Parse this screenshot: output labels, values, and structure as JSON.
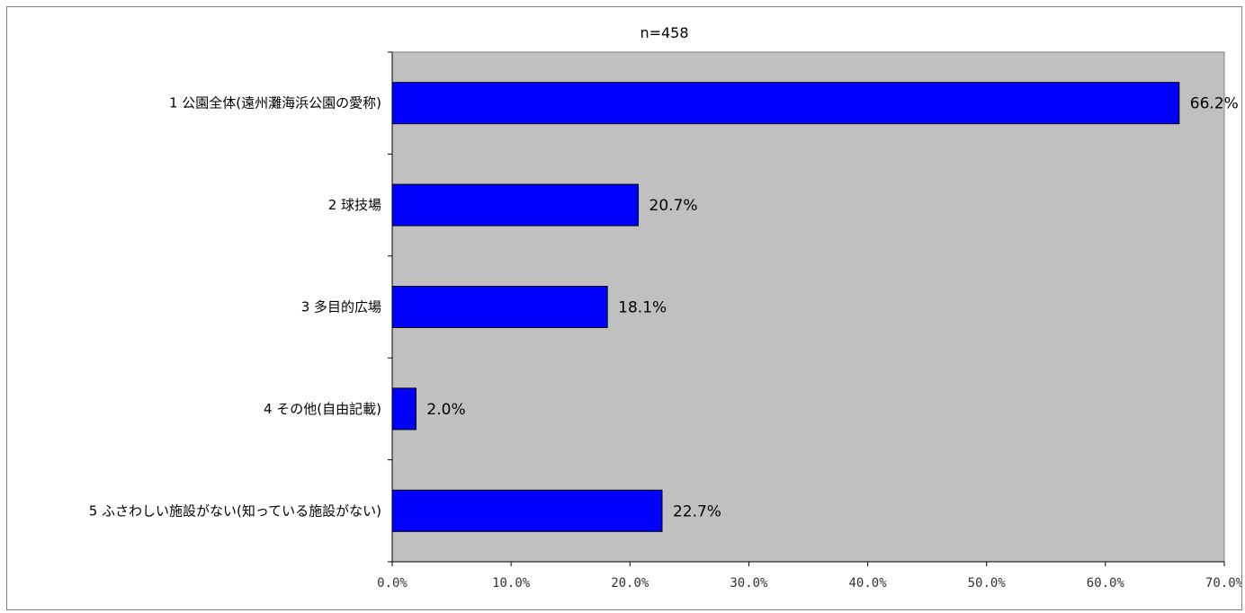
{
  "chart_data": {
    "type": "bar",
    "orientation": "horizontal",
    "subtitle": "n=458",
    "categories": [
      "1 公園全体(遠州灘海浜公園の愛称)",
      "2 球技場",
      "3 多目的広場",
      "4 その他(自由記載)",
      "5 ふさわしい施設がない(知っている施設がない)"
    ],
    "values": [
      66.2,
      20.7,
      18.1,
      2.0,
      22.7
    ],
    "value_labels": [
      "66.2%",
      "20.7%",
      "18.1%",
      "2.0%",
      "22.7%"
    ],
    "xlim": [
      0,
      70
    ],
    "xticks": [
      0,
      10,
      20,
      30,
      40,
      50,
      60,
      70
    ],
    "xtick_labels": [
      "0.0%",
      "10.0%",
      "20.0%",
      "30.0%",
      "40.0%",
      "50.0%",
      "60.0%",
      "70.0%"
    ],
    "grid": false,
    "legend": "none",
    "colors": {
      "bar": "#0000ff",
      "bar_border": "#000000",
      "plot_background": "#c0c0c0",
      "axis": "#000000"
    }
  }
}
